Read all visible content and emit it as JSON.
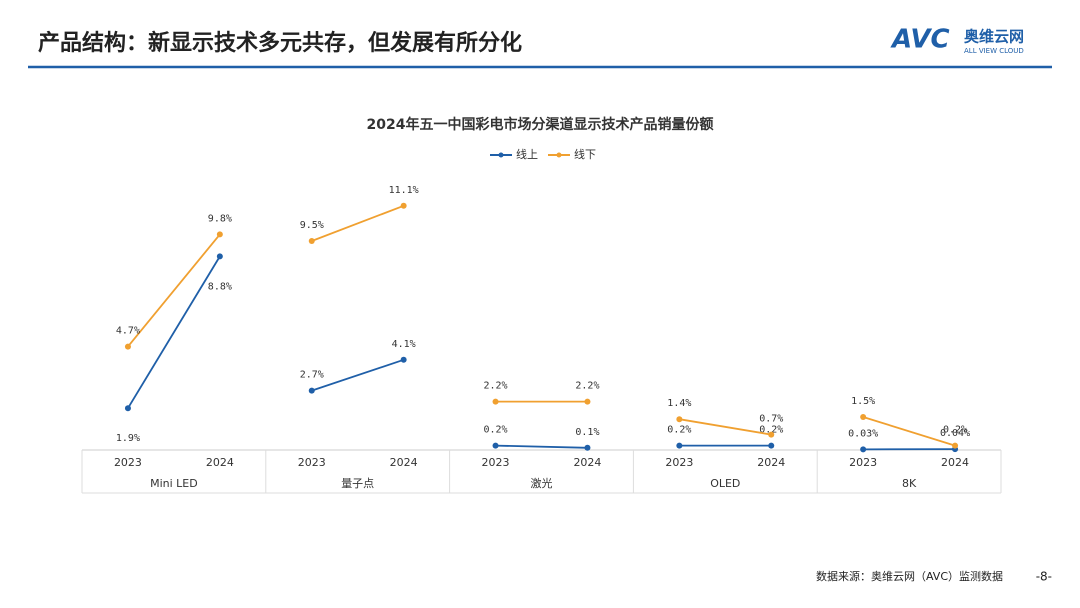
{
  "header": {
    "title": "产品结构：新显示技术多元共存，但发展有所分化",
    "logo_mark": "AVC",
    "logo_name": "奥维云网",
    "logo_sub": "ALL VIEW CLOUD"
  },
  "chart_data": {
    "type": "line",
    "title": "2024年五一中国彩电市场分渠道显示技术产品销量份额",
    "groups": [
      "Mini LED",
      "量子点",
      "激光",
      "OLED",
      "8K"
    ],
    "categories": [
      "2023",
      "2024",
      "2023",
      "2024",
      "2023",
      "2024",
      "2023",
      "2024",
      "2023",
      "2024"
    ],
    "series": [
      {
        "name": "线上",
        "color": "#1f5fa8",
        "values": [
          1.9,
          8.8,
          2.7,
          4.1,
          0.2,
          0.1,
          0.2,
          0.2,
          0.03,
          0.04
        ],
        "value_labels": [
          "1.9%",
          "8.8%",
          "2.7%",
          "4.1%",
          "0.2%",
          "0.1%",
          "0.2%",
          "0.2%",
          "0.03%",
          "0.04%"
        ]
      },
      {
        "name": "线下",
        "color": "#f0a030",
        "values": [
          4.7,
          9.8,
          9.5,
          11.1,
          2.2,
          2.2,
          1.4,
          0.7,
          1.5,
          0.2
        ],
        "value_labels": [
          "4.7%",
          "9.8%",
          "9.5%",
          "11.1%",
          "2.2%",
          "2.2%",
          "1.4%",
          "0.7%",
          "1.5%",
          "0.2%"
        ]
      }
    ],
    "ylim": [
      0,
      12
    ]
  },
  "footer": {
    "source": "数据来源：奥维云网（AVC）监测数据",
    "page": "-8-"
  }
}
